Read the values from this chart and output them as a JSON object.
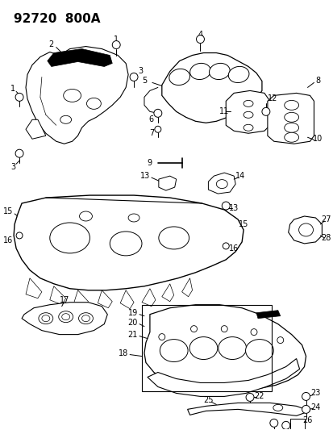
{
  "title": "92720  800A",
  "bg_color": "#ffffff",
  "line_color": "#000000",
  "title_fontsize": 11,
  "label_fontsize": 7,
  "fig_width": 4.14,
  "fig_height": 5.33,
  "dpi": 100
}
